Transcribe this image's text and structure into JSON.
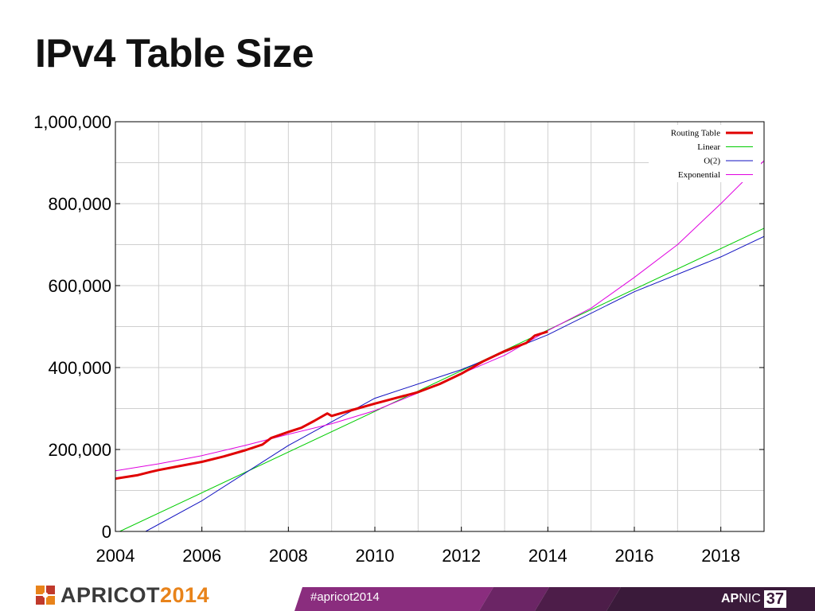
{
  "slide": {
    "title": "IPv4 Table Size"
  },
  "chart_data": {
    "type": "line",
    "title": "",
    "xlabel": "",
    "ylabel": "",
    "xlim": [
      2004,
      2019
    ],
    "ylim": [
      0,
      1000000
    ],
    "x_ticks": [
      2004,
      2006,
      2008,
      2010,
      2012,
      2014,
      2016,
      2018
    ],
    "x_tick_labels": [
      "2004",
      "2006",
      "2008",
      "2010",
      "2012",
      "2014",
      "2016",
      "2018"
    ],
    "y_ticks": [
      0,
      200000,
      400000,
      600000,
      800000,
      1000000
    ],
    "y_tick_labels": [
      "0",
      "200,000",
      "400,000",
      "600,000",
      "800,000",
      "1,000,000"
    ],
    "grid": true,
    "legend_position": "top-right",
    "series": [
      {
        "name": "Routing Table",
        "color": "#e00000",
        "x": [
          2004.0,
          2004.5,
          2004.8,
          2005.0,
          2005.5,
          2006.0,
          2006.5,
          2007.0,
          2007.4,
          2007.6,
          2008.0,
          2008.3,
          2008.6,
          2008.9,
          2009.0,
          2009.5,
          2010.0,
          2010.5,
          2011.0,
          2011.5,
          2012.0,
          2012.5,
          2013.0,
          2013.5,
          2013.7,
          2014.0
        ],
        "y": [
          129000,
          137000,
          145000,
          150000,
          160000,
          170000,
          183000,
          198000,
          212000,
          228000,
          243000,
          253000,
          270000,
          288000,
          282000,
          297000,
          312000,
          326000,
          340000,
          360000,
          385000,
          415000,
          440000,
          460000,
          478000,
          488000
        ]
      },
      {
        "name": "Linear",
        "color": "#00cc00",
        "x": [
          2004.1,
          2019.0
        ],
        "y": [
          0,
          740000
        ]
      },
      {
        "name": "O(2)",
        "color": "#1010c0",
        "x": [
          2004.7,
          2006.0,
          2008.0,
          2010.0,
          2012.0,
          2014.0,
          2016.0,
          2018.0,
          2019.0
        ],
        "y": [
          0,
          75000,
          210000,
          325000,
          395000,
          480000,
          585000,
          670000,
          720000
        ]
      },
      {
        "name": "Exponential",
        "color": "#e000e0",
        "x": [
          2004.0,
          2005.0,
          2006.0,
          2007.0,
          2008.0,
          2009.0,
          2010.0,
          2011.0,
          2012.0,
          2013.0,
          2014.0,
          2015.0,
          2016.0,
          2017.0,
          2018.0,
          2019.0
        ],
        "y": [
          148000,
          165000,
          185000,
          210000,
          237000,
          263000,
          295000,
          338000,
          385000,
          430000,
          490000,
          545000,
          620000,
          700000,
          800000,
          905000
        ]
      }
    ]
  },
  "footer": {
    "brand_word": "APRICOT",
    "brand_year": "2014",
    "hashtag": "#apricot2014",
    "apnic_ap": "AP",
    "apnic_nic": "NIC",
    "apnic_num": "37",
    "colors": {
      "purple": "#8a2d7e",
      "dark": "#3a1a3a",
      "orange": "#e8831a"
    }
  }
}
